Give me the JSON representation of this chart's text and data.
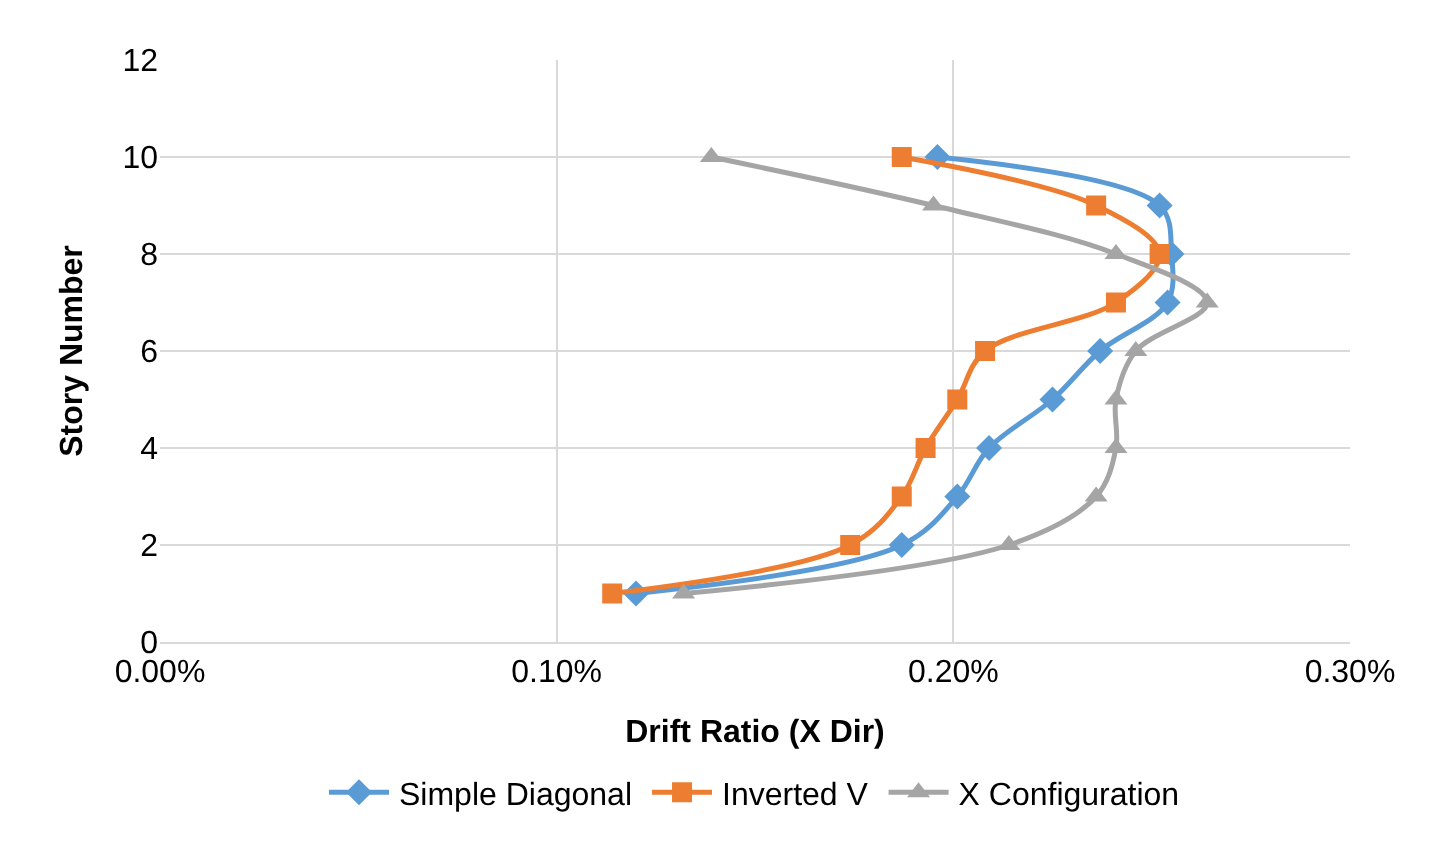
{
  "chart_data": {
    "type": "line",
    "xlabel": "Drift Ratio (X Dir)",
    "ylabel": "Story Number",
    "xlim": [
      0,
      0.3
    ],
    "xticks": [
      {
        "value": 0,
        "label": "0.00%"
      },
      {
        "value": 0.1,
        "label": "0.10%"
      },
      {
        "value": 0.2,
        "label": "0.20%"
      },
      {
        "value": 0.3,
        "label": "0.30%"
      }
    ],
    "ylim": [
      0,
      12
    ],
    "yticks": [
      0,
      2,
      4,
      6,
      8,
      10,
      12
    ],
    "grid": true,
    "legend": "bottom",
    "line_style": "solid",
    "series": [
      {
        "name": "Simple Diagonal",
        "color": "#5b9bd5",
        "marker": "diamond",
        "x": [
          0.12,
          0.187,
          0.201,
          0.209,
          0.225,
          0.237,
          0.254,
          0.255,
          0.252,
          0.196
        ],
        "values": [
          1,
          2,
          3,
          4,
          5,
          6,
          7,
          8,
          9,
          10
        ]
      },
      {
        "name": "Inverted V",
        "color": "#ed7d31",
        "marker": "square",
        "x": [
          0.114,
          0.174,
          0.187,
          0.193,
          0.201,
          0.208,
          0.241,
          0.252,
          0.236,
          0.187
        ],
        "values": [
          1,
          2,
          3,
          4,
          5,
          6,
          7,
          8,
          9,
          10
        ]
      },
      {
        "name": "X Configuration",
        "color": "#a5a5a5",
        "marker": "triangle",
        "x": [
          0.132,
          0.214,
          0.236,
          0.241,
          0.241,
          0.246,
          0.264,
          0.241,
          0.195,
          0.139
        ],
        "values": [
          1,
          2,
          3,
          4,
          5,
          6,
          7,
          8,
          9,
          10
        ]
      }
    ]
  }
}
